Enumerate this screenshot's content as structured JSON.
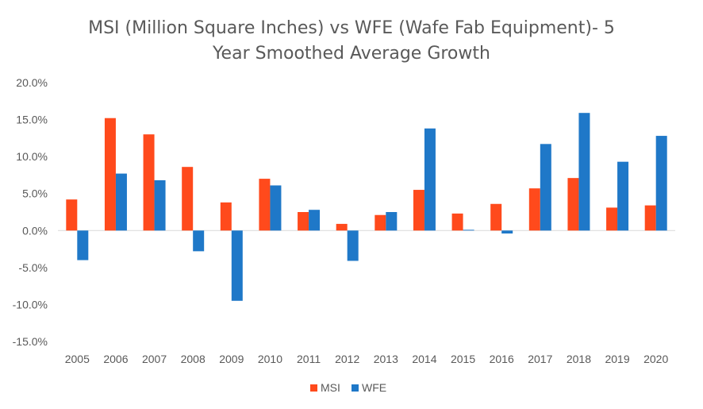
{
  "chart_data": {
    "type": "bar",
    "title_line1": "MSI (Million Square Inches) vs WFE (Wafe Fab Equipment)- 5",
    "title_line2": "Year Smoothed Average Growth",
    "xlabel": "",
    "ylabel": "",
    "categories": [
      "2005",
      "2006",
      "2007",
      "2008",
      "2009",
      "2010",
      "2011",
      "2012",
      "2013",
      "2014",
      "2015",
      "2016",
      "2017",
      "2018",
      "2019",
      "2020"
    ],
    "series": [
      {
        "name": "MSI",
        "color": "#FF4A1C",
        "values": [
          4.2,
          15.2,
          13.0,
          8.6,
          3.8,
          7.0,
          2.5,
          0.9,
          2.1,
          5.5,
          2.3,
          3.6,
          5.7,
          7.1,
          3.1,
          3.4
        ]
      },
      {
        "name": "WFE",
        "color": "#1F78C8",
        "values": [
          -4.0,
          7.7,
          6.8,
          -2.8,
          -9.5,
          6.1,
          2.8,
          -4.1,
          2.5,
          13.8,
          0.1,
          -0.4,
          11.7,
          15.9,
          9.3,
          12.8
        ]
      }
    ],
    "ylim": [
      -15,
      20
    ],
    "yticks": [
      20,
      15,
      10,
      5,
      0,
      -5,
      -10,
      -15
    ],
    "ytick_labels": [
      "20.0%",
      "15.0%",
      "10.0%",
      "5.0%",
      "0.0%",
      "-5.0%",
      "-10.0%",
      "-15.0%"
    ],
    "grid": false,
    "legend_position": "bottom"
  }
}
